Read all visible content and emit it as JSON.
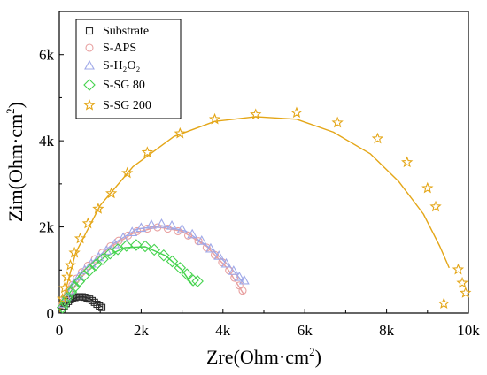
{
  "chart_data": {
    "type": "scatter",
    "xlabel_main": "Zre(Ohm·cm",
    "xlabel_sup": "2",
    "xlabel_close": ")",
    "ylabel_main": "Zim(Ohm·cm",
    "ylabel_sup": "2",
    "ylabel_close": ")",
    "xlim": [
      0,
      10000
    ],
    "ylim": [
      0,
      7000
    ],
    "x_ticks": [
      0,
      2000,
      4000,
      6000,
      8000,
      10000
    ],
    "x_tick_labels": [
      "0",
      "2k",
      "4k",
      "6k",
      "8k",
      "10k"
    ],
    "y_ticks": [
      0,
      2000,
      4000,
      6000
    ],
    "y_tick_labels": [
      "0",
      "2k",
      "4k",
      "6k"
    ],
    "grid": false,
    "legend_position": "top-left",
    "series": [
      {
        "name": "Substrate",
        "marker": "square",
        "color": "#2b2b2b",
        "points": [
          [
            70,
            80
          ],
          [
            120,
            160
          ],
          [
            170,
            220
          ],
          [
            220,
            270
          ],
          [
            270,
            310
          ],
          [
            320,
            340
          ],
          [
            380,
            360
          ],
          [
            440,
            375
          ],
          [
            500,
            380
          ],
          [
            560,
            378
          ],
          [
            620,
            368
          ],
          [
            680,
            350
          ],
          [
            740,
            325
          ],
          [
            800,
            290
          ],
          [
            860,
            250
          ],
          [
            920,
            205
          ],
          [
            980,
            165
          ],
          [
            1040,
            130
          ]
        ],
        "fit": [
          [
            0,
            0
          ],
          [
            100,
            150
          ],
          [
            250,
            290
          ],
          [
            450,
            370
          ],
          [
            600,
            375
          ],
          [
            750,
            330
          ],
          [
            900,
            240
          ],
          [
            1000,
            170
          ],
          [
            1060,
            140
          ]
        ]
      },
      {
        "name": "S-APS",
        "marker": "circle",
        "color": "#e8a0a0",
        "points": [
          [
            80,
            200
          ],
          [
            150,
            350
          ],
          [
            230,
            500
          ],
          [
            320,
            650
          ],
          [
            420,
            800
          ],
          [
            550,
            950
          ],
          [
            700,
            1100
          ],
          [
            870,
            1250
          ],
          [
            1050,
            1400
          ],
          [
            1250,
            1550
          ],
          [
            1450,
            1680
          ],
          [
            1680,
            1800
          ],
          [
            1900,
            1900
          ],
          [
            2150,
            1960
          ],
          [
            2400,
            1990
          ],
          [
            2650,
            1960
          ],
          [
            2900,
            1900
          ],
          [
            3150,
            1800
          ],
          [
            3400,
            1670
          ],
          [
            3600,
            1520
          ],
          [
            3800,
            1350
          ],
          [
            3980,
            1180
          ],
          [
            4150,
            990
          ],
          [
            4280,
            820
          ],
          [
            4400,
            640
          ],
          [
            4480,
            520
          ]
        ],
        "fit": [
          [
            0,
            0
          ],
          [
            200,
            500
          ],
          [
            600,
            1000
          ],
          [
            1200,
            1500
          ],
          [
            1800,
            1850
          ],
          [
            2400,
            2000
          ],
          [
            3000,
            1900
          ],
          [
            3600,
            1550
          ],
          [
            4100,
            1050
          ],
          [
            4400,
            600
          ],
          [
            4500,
            450
          ]
        ]
      },
      {
        "name": "S-H₂O₂",
        "marker": "triangle",
        "color": "#9fa8e8",
        "points": [
          [
            90,
            220
          ],
          [
            170,
            380
          ],
          [
            260,
            530
          ],
          [
            360,
            690
          ],
          [
            480,
            850
          ],
          [
            620,
            1000
          ],
          [
            780,
            1150
          ],
          [
            960,
            1300
          ],
          [
            1150,
            1450
          ],
          [
            1350,
            1600
          ],
          [
            1560,
            1750
          ],
          [
            1780,
            1880
          ],
          [
            2000,
            1980
          ],
          [
            2250,
            2050
          ],
          [
            2500,
            2070
          ],
          [
            2750,
            2030
          ],
          [
            3000,
            1950
          ],
          [
            3250,
            1830
          ],
          [
            3480,
            1680
          ],
          [
            3700,
            1500
          ],
          [
            3900,
            1330
          ],
          [
            4080,
            1150
          ],
          [
            4260,
            980
          ],
          [
            4400,
            840
          ],
          [
            4520,
            760
          ]
        ],
        "fit": [
          [
            0,
            0
          ],
          [
            250,
            550
          ],
          [
            700,
            1100
          ],
          [
            1300,
            1600
          ],
          [
            1900,
            1950
          ],
          [
            2500,
            2030
          ],
          [
            3100,
            1900
          ],
          [
            3700,
            1500
          ],
          [
            4200,
            1050
          ],
          [
            4500,
            700
          ]
        ]
      },
      {
        "name": "S-SG 80",
        "marker": "diamond",
        "color": "#45d34e",
        "points": [
          [
            80,
            130
          ],
          [
            140,
            250
          ],
          [
            210,
            370
          ],
          [
            290,
            490
          ],
          [
            380,
            610
          ],
          [
            480,
            730
          ],
          [
            600,
            860
          ],
          [
            740,
            990
          ],
          [
            890,
            1120
          ],
          [
            1060,
            1250
          ],
          [
            1240,
            1380
          ],
          [
            1430,
            1480
          ],
          [
            1640,
            1560
          ],
          [
            1880,
            1580
          ],
          [
            2100,
            1550
          ],
          [
            2320,
            1470
          ],
          [
            2550,
            1340
          ],
          [
            2760,
            1200
          ],
          [
            2950,
            1050
          ],
          [
            3120,
            900
          ],
          [
            3270,
            760
          ],
          [
            3380,
            740
          ]
        ],
        "fit": [
          [
            0,
            0
          ],
          [
            200,
            400
          ],
          [
            600,
            900
          ],
          [
            1100,
            1300
          ],
          [
            1600,
            1520
          ],
          [
            2100,
            1540
          ],
          [
            2600,
            1330
          ],
          [
            3000,
            1000
          ],
          [
            3250,
            650
          ]
        ]
      },
      {
        "name": "S-SG 200",
        "marker": "star",
        "color": "#e4a617",
        "points": [
          [
            80,
            330
          ],
          [
            130,
            580
          ],
          [
            190,
            840
          ],
          [
            270,
            1110
          ],
          [
            370,
            1400
          ],
          [
            510,
            1730
          ],
          [
            700,
            2080
          ],
          [
            950,
            2420
          ],
          [
            1270,
            2780
          ],
          [
            1660,
            3250
          ],
          [
            2150,
            3730
          ],
          [
            2950,
            4170
          ],
          [
            3800,
            4500
          ],
          [
            4800,
            4610
          ],
          [
            5800,
            4650
          ],
          [
            6800,
            4420
          ],
          [
            7780,
            4050
          ],
          [
            8500,
            3500
          ],
          [
            9000,
            2900
          ],
          [
            9200,
            2470
          ],
          [
            9750,
            1010
          ],
          [
            9850,
            700
          ],
          [
            9930,
            470
          ],
          [
            9400,
            220
          ]
        ],
        "fit": [
          [
            0,
            0
          ],
          [
            400,
            1400
          ],
          [
            1000,
            2500
          ],
          [
            1800,
            3400
          ],
          [
            2800,
            4100
          ],
          [
            3800,
            4450
          ],
          [
            4800,
            4560
          ],
          [
            5800,
            4500
          ],
          [
            6700,
            4200
          ],
          [
            7600,
            3700
          ],
          [
            8300,
            3050
          ],
          [
            8900,
            2300
          ],
          [
            9300,
            1550
          ],
          [
            9530,
            1050
          ]
        ]
      }
    ]
  }
}
